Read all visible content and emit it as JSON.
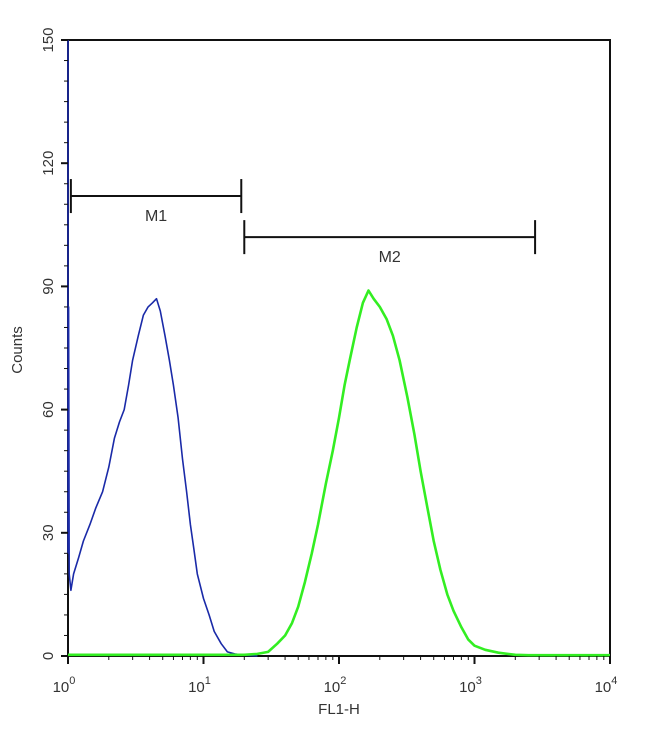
{
  "chart_data": {
    "type": "line",
    "title": "",
    "xlabel": "FL1-H",
    "ylabel": "Counts",
    "x_scale": "log",
    "xlim": [
      1,
      10000
    ],
    "ylim": [
      0,
      150
    ],
    "x_ticks": [
      {
        "value": 1,
        "base": "10",
        "exp": "0"
      },
      {
        "value": 10,
        "base": "10",
        "exp": "1"
      },
      {
        "value": 100,
        "base": "10",
        "exp": "2"
      },
      {
        "value": 1000,
        "base": "10",
        "exp": "3"
      },
      {
        "value": 10000,
        "base": "10",
        "exp": "4"
      }
    ],
    "y_ticks": [
      "0",
      "30",
      "60",
      "90",
      "120",
      "150"
    ],
    "grid": false,
    "gates": [
      {
        "label": "M1",
        "x_start": 1.05,
        "x_end": 19,
        "y": 112
      },
      {
        "label": "M2",
        "x_start": 20,
        "x_end": 2800,
        "y": 102
      }
    ],
    "series": [
      {
        "color": "#1a2aa8",
        "points": [
          [
            1.0,
            150
          ],
          [
            1.0,
            25
          ],
          [
            1.01,
            85
          ],
          [
            1.02,
            20
          ],
          [
            1.05,
            16
          ],
          [
            1.1,
            20
          ],
          [
            1.2,
            24
          ],
          [
            1.3,
            28
          ],
          [
            1.45,
            32
          ],
          [
            1.6,
            36
          ],
          [
            1.8,
            40
          ],
          [
            2.0,
            46
          ],
          [
            2.2,
            53
          ],
          [
            2.4,
            57
          ],
          [
            2.6,
            60
          ],
          [
            2.8,
            66
          ],
          [
            3.0,
            72
          ],
          [
            3.3,
            78
          ],
          [
            3.6,
            83
          ],
          [
            3.9,
            85
          ],
          [
            4.2,
            86
          ],
          [
            4.5,
            87
          ],
          [
            4.8,
            84
          ],
          [
            5.2,
            78
          ],
          [
            5.6,
            72
          ],
          [
            6.0,
            66
          ],
          [
            6.5,
            58
          ],
          [
            7.0,
            48
          ],
          [
            7.5,
            40
          ],
          [
            8.0,
            32
          ],
          [
            8.5,
            26
          ],
          [
            9.0,
            20
          ],
          [
            10.0,
            14
          ],
          [
            11.0,
            10
          ],
          [
            12.0,
            6
          ],
          [
            13.5,
            3
          ],
          [
            15.0,
            1
          ],
          [
            17.0,
            0.5
          ],
          [
            20.0,
            0.2
          ],
          [
            25.0,
            0
          ]
        ]
      },
      {
        "color": "#33ee22",
        "points": [
          [
            1.0,
            0.3
          ],
          [
            20,
            0.3
          ],
          [
            25,
            0.5
          ],
          [
            30,
            1
          ],
          [
            35,
            3
          ],
          [
            40,
            5
          ],
          [
            45,
            8
          ],
          [
            50,
            12
          ],
          [
            56,
            18
          ],
          [
            63,
            25
          ],
          [
            70,
            32
          ],
          [
            80,
            42
          ],
          [
            90,
            50
          ],
          [
            100,
            58
          ],
          [
            110,
            66
          ],
          [
            120,
            72
          ],
          [
            135,
            80
          ],
          [
            150,
            86
          ],
          [
            165,
            89
          ],
          [
            180,
            87
          ],
          [
            200,
            85
          ],
          [
            225,
            82
          ],
          [
            250,
            78
          ],
          [
            280,
            72
          ],
          [
            320,
            63
          ],
          [
            360,
            54
          ],
          [
            400,
            45
          ],
          [
            450,
            36
          ],
          [
            500,
            28
          ],
          [
            560,
            21
          ],
          [
            630,
            15
          ],
          [
            700,
            11
          ],
          [
            800,
            7
          ],
          [
            900,
            4
          ],
          [
            1000,
            2.5
          ],
          [
            1200,
            1.5
          ],
          [
            1500,
            0.8
          ],
          [
            2000,
            0.3
          ],
          [
            2500,
            0.2
          ],
          [
            10000,
            0.2
          ]
        ]
      }
    ]
  }
}
